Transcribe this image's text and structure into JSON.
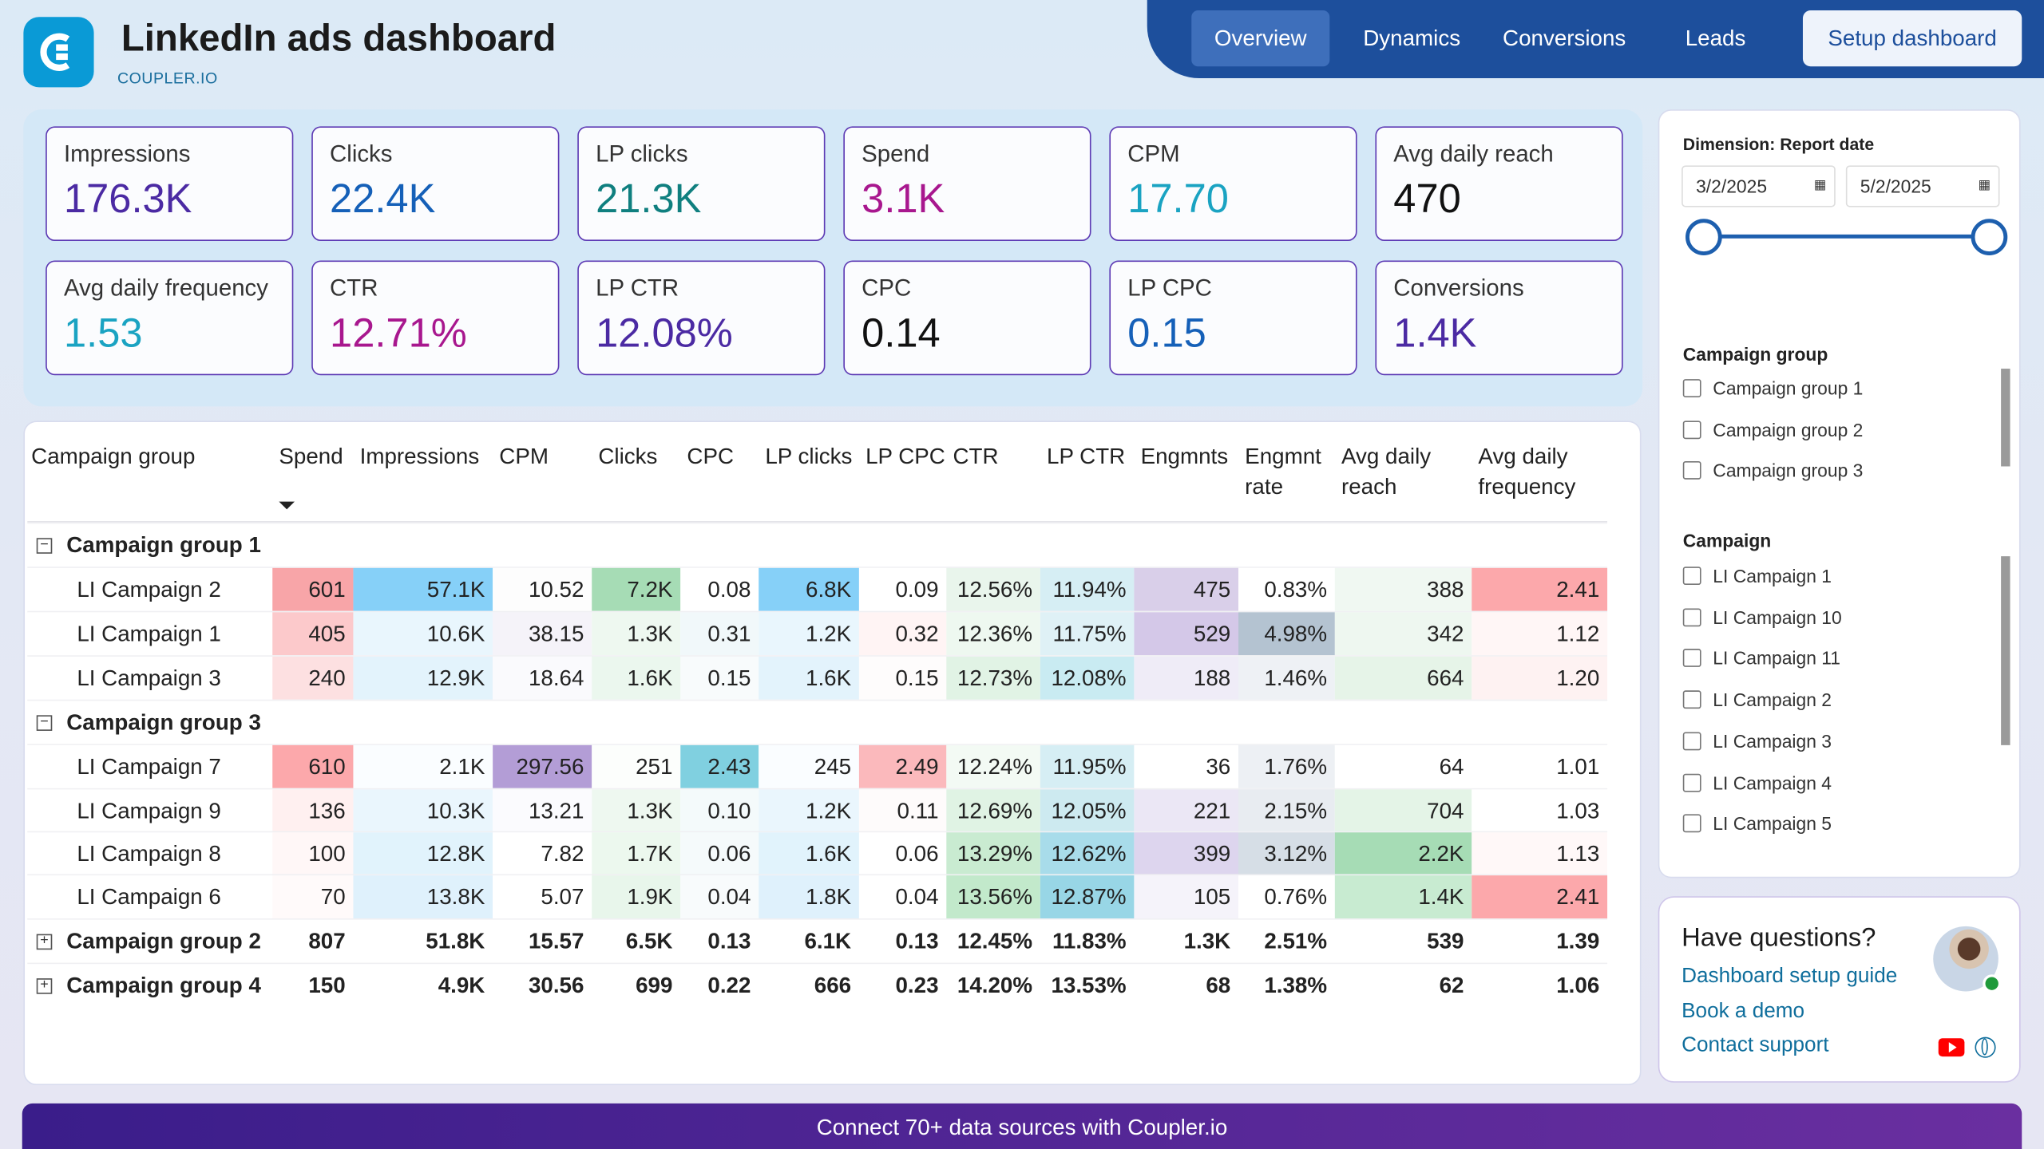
{
  "header": {
    "title": "LinkedIn ads dashboard",
    "brand": "COUPLER.IO"
  },
  "nav": {
    "tabs": [
      {
        "label": "Overview",
        "active": true
      },
      {
        "label": "Dynamics"
      },
      {
        "label": "Conversions"
      },
      {
        "label": "Leads"
      }
    ],
    "setup_label": "Setup dashboard"
  },
  "kpis": [
    {
      "label": "Impressions",
      "value": "176.3K",
      "color": "#4b2aa3"
    },
    {
      "label": "Clicks",
      "value": "22.4K",
      "color": "#1560b8"
    },
    {
      "label": "LP clicks",
      "value": "21.3K",
      "color": "#0f7f7f"
    },
    {
      "label": "Spend",
      "value": "3.1K",
      "color": "#a8178e"
    },
    {
      "label": "CPM",
      "value": "17.70",
      "color": "#1aa3c2"
    },
    {
      "label": "Avg daily reach",
      "value": "470",
      "color": "#111111"
    },
    {
      "label": "Avg daily frequency",
      "value": "1.53",
      "color": "#1aa3c2"
    },
    {
      "label": "CTR",
      "value": "12.71%",
      "color": "#a8178e"
    },
    {
      "label": "LP CTR",
      "value": "12.08%",
      "color": "#4b2aa3"
    },
    {
      "label": "CPC",
      "value": "0.14",
      "color": "#111111"
    },
    {
      "label": "LP CPC",
      "value": "0.15",
      "color": "#1560b8"
    },
    {
      "label": "Conversions",
      "value": "1.4K",
      "color": "#4b2aa3"
    }
  ],
  "table": {
    "columns": [
      "Campaign group",
      "Spend",
      "Impressions",
      "CPM",
      "Clicks",
      "CPC",
      "LP clicks",
      "LP CPC",
      "CTR",
      "LP CTR",
      "Engmnts",
      "Engmnt rate",
      "Avg daily reach",
      "Avg daily frequency"
    ],
    "sort_icon": "sort-descending-icon",
    "rows": [
      {
        "type": "group",
        "expanded": true,
        "label": "Campaign group 1"
      },
      {
        "type": "item",
        "label": "LI Campaign 2",
        "values": [
          "601",
          "57.1K",
          "10.52",
          "7.2K",
          "0.08",
          "6.8K",
          "0.09",
          "12.56%",
          "11.94%",
          "475",
          "0.83%",
          "388",
          "2.41"
        ],
        "colors": [
          "#f8a5a8",
          "#86d0f8",
          "#fdfdfd",
          "#a6dcb5",
          "#ffffff",
          "#86d0f8",
          "#ffffff",
          "#e9f5ec",
          "#d6eef4",
          "#d9cfe9",
          "#ffffff",
          "#f0f8f2",
          "#fca8ab"
        ]
      },
      {
        "type": "item",
        "label": "LI Campaign 1",
        "values": [
          "405",
          "10.6K",
          "38.15",
          "1.3K",
          "0.31",
          "1.2K",
          "0.32",
          "12.36%",
          "11.75%",
          "529",
          "4.98%",
          "342",
          "1.12"
        ],
        "colors": [
          "#fcc9cb",
          "#e9f6fd",
          "#f5f3f9",
          "#eef8f0",
          "#f1f8fa",
          "#e9f6fd",
          "#fff4f4",
          "#eef8f0",
          "#dff1f6",
          "#d4c8e8",
          "#b4c3d1",
          "#eef7f0",
          "#fff6f6"
        ]
      },
      {
        "type": "item",
        "label": "LI Campaign 3",
        "values": [
          "240",
          "12.9K",
          "18.64",
          "1.6K",
          "0.15",
          "1.6K",
          "0.15",
          "12.73%",
          "12.08%",
          "188",
          "1.46%",
          "664",
          "1.20"
        ],
        "colors": [
          "#fde0e1",
          "#e3f3fc",
          "#fafafd",
          "#ebf7ee",
          "#f8fbfc",
          "#e3f3fc",
          "#fefcfc",
          "#e1f3e5",
          "#c9ebf2",
          "#efecf7",
          "#eef1f5",
          "#e6f4e8",
          "#fef2f2"
        ]
      },
      {
        "type": "group",
        "expanded": true,
        "label": "Campaign group 3"
      },
      {
        "type": "item",
        "label": "LI Campaign 7",
        "values": [
          "610",
          "2.1K",
          "297.56",
          "251",
          "2.43",
          "245",
          "2.49",
          "12.24%",
          "11.95%",
          "36",
          "1.76%",
          "64",
          "1.01"
        ],
        "colors": [
          "#fca8ab",
          "#fafdff",
          "#b39dd6",
          "#fcfefc",
          "#80d0e0",
          "#fafdff",
          "#fbb9bc",
          "#f3faf4",
          "#d6eef4",
          "#ffffff",
          "#edf0f4",
          "#ffffff",
          "#ffffff"
        ]
      },
      {
        "type": "item",
        "label": "LI Campaign 9",
        "values": [
          "136",
          "10.3K",
          "13.21",
          "1.3K",
          "0.10",
          "1.2K",
          "0.11",
          "12.69%",
          "12.05%",
          "221",
          "2.15%",
          "704",
          "1.03"
        ],
        "colors": [
          "#fff0f0",
          "#eaf6fd",
          "#fbfbfe",
          "#eef8f0",
          "#f4fafb",
          "#eaf6fd",
          "#fefbfb",
          "#e0f3e4",
          "#cdeaf0",
          "#ebe7f5",
          "#e8ecf1",
          "#e4f4e7",
          "#ffffff"
        ]
      },
      {
        "type": "item",
        "label": "LI Campaign 8",
        "values": [
          "100",
          "12.8K",
          "7.82",
          "1.7K",
          "0.06",
          "1.6K",
          "0.06",
          "13.29%",
          "12.62%",
          "399",
          "3.12%",
          "2.2K",
          "1.13"
        ],
        "colors": [
          "#fff7f7",
          "#e1f3fc",
          "#ffffff",
          "#ecf8ee",
          "#f5fafb",
          "#e1f3fc",
          "#ffffff",
          "#c9ebd1",
          "#a8dcea",
          "#ddd5ee",
          "#d6dee6",
          "#a6dcb5",
          "#fff8f8"
        ]
      },
      {
        "type": "item",
        "label": "LI Campaign 6",
        "values": [
          "70",
          "13.8K",
          "5.07",
          "1.9K",
          "0.04",
          "1.8K",
          "0.04",
          "13.56%",
          "12.87%",
          "105",
          "0.76%",
          "1.4K",
          "2.41"
        ],
        "colors": [
          "#fffafa",
          "#dff1fc",
          "#ffffff",
          "#e8f6eb",
          "#f8fbfc",
          "#dff1fc",
          "#ffffff",
          "#c2e9cb",
          "#98d6e6",
          "#f5f3fa",
          "#ffffff",
          "#c8ebd1",
          "#fca8ab"
        ]
      },
      {
        "type": "group",
        "expanded": false,
        "label": "Campaign group 2",
        "values": [
          "807",
          "51.8K",
          "15.57",
          "6.5K",
          "0.13",
          "6.1K",
          "0.13",
          "12.45%",
          "11.83%",
          "1.3K",
          "2.51%",
          "539",
          "1.39"
        ]
      },
      {
        "type": "group",
        "expanded": false,
        "label": "Campaign group 4",
        "values": [
          "150",
          "4.9K",
          "30.56",
          "699",
          "0.22",
          "666",
          "0.23",
          "14.20%",
          "13.53%",
          "68",
          "1.38%",
          "62",
          "1.06"
        ]
      }
    ]
  },
  "filters": {
    "dimension_label": "Dimension: Report date",
    "date_from": "3/2/2025",
    "date_to": "5/2/2025",
    "campaign_group_label": "Campaign group",
    "campaign_groups": [
      "Campaign group 1",
      "Campaign group 2",
      "Campaign group 3"
    ],
    "campaign_label": "Campaign",
    "campaigns": [
      "LI Campaign 1",
      "LI Campaign 10",
      "LI Campaign 11",
      "LI Campaign 2",
      "LI Campaign 3",
      "LI Campaign 4",
      "LI Campaign 5"
    ]
  },
  "help": {
    "title": "Have questions?",
    "links": [
      "Dashboard setup guide",
      "Book a demo",
      "Contact support"
    ]
  },
  "footer": {
    "text": "Connect 70+ data sources with Coupler.io"
  }
}
